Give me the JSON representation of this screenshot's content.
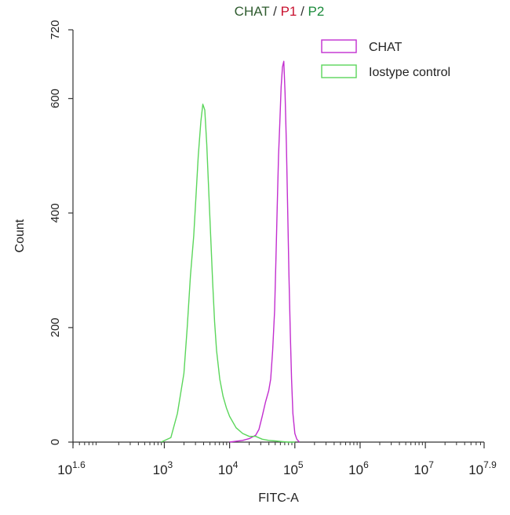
{
  "chart_data": {
    "type": "area",
    "title": {
      "parts": [
        {
          "text": "CHAT",
          "color": "#2e5b2e"
        },
        {
          "text": " / ",
          "color": "#333333"
        },
        {
          "text": "P1",
          "color": "#c8102e"
        },
        {
          "text": " / ",
          "color": "#333333"
        },
        {
          "text": "P2",
          "color": "#1a8a3a"
        }
      ]
    },
    "xlabel": "FITC-A",
    "ylabel": "Count",
    "x_scale": "log10",
    "xlim": [
      1.6,
      7.9
    ],
    "ylim": [
      0,
      720
    ],
    "x_ticks": [
      {
        "base": "10",
        "exp": "1.6",
        "log": 1.6
      },
      {
        "base": "10",
        "exp": "3",
        "log": 3
      },
      {
        "base": "10",
        "exp": "4",
        "log": 4
      },
      {
        "base": "10",
        "exp": "5",
        "log": 5
      },
      {
        "base": "10",
        "exp": "6",
        "log": 6
      },
      {
        "base": "10",
        "exp": "7",
        "log": 7
      },
      {
        "base": "10",
        "exp": "7.9",
        "log": 7.9
      }
    ],
    "y_ticks": [
      0,
      200,
      400,
      600,
      720
    ],
    "legend_position": "top-right",
    "grid": false,
    "series": [
      {
        "name": "CHAT",
        "color": "#c22ecf",
        "log_x": [
          4.0,
          4.2,
          4.3,
          4.4,
          4.45,
          4.5,
          4.55,
          4.6,
          4.63,
          4.66,
          4.69,
          4.71,
          4.73,
          4.75,
          4.77,
          4.79,
          4.81,
          4.83,
          4.85,
          4.87,
          4.89,
          4.91,
          4.93,
          4.95,
          4.97,
          5.0,
          5.03,
          5.07
        ],
        "values": [
          0,
          3,
          6,
          12,
          22,
          45,
          70,
          90,
          110,
          160,
          230,
          320,
          410,
          500,
          560,
          620,
          655,
          665,
          610,
          520,
          410,
          290,
          190,
          110,
          50,
          15,
          5,
          0
        ]
      },
      {
        "name": "Iostype control",
        "color": "#5bd65b",
        "log_x": [
          2.95,
          3.1,
          3.2,
          3.3,
          3.35,
          3.4,
          3.45,
          3.48,
          3.52,
          3.56,
          3.59,
          3.62,
          3.65,
          3.68,
          3.71,
          3.74,
          3.77,
          3.8,
          3.85,
          3.9,
          3.95,
          4.0,
          4.1,
          4.2,
          4.3,
          4.4,
          4.5,
          4.6,
          4.7,
          4.8,
          4.9,
          5.0
        ],
        "values": [
          0,
          8,
          50,
          120,
          200,
          290,
          360,
          420,
          500,
          560,
          590,
          580,
          520,
          440,
          360,
          280,
          210,
          160,
          110,
          80,
          60,
          45,
          25,
          15,
          10,
          10,
          5,
          3,
          2,
          1,
          0,
          0
        ]
      }
    ]
  }
}
